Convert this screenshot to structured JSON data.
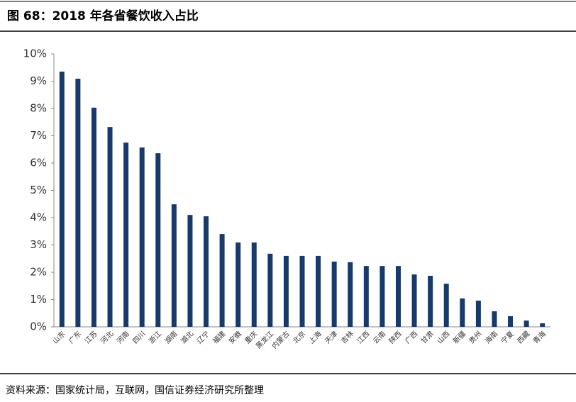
{
  "chart_data": {
    "type": "bar",
    "title": "图 68：2018 年各省餐饮收入占比",
    "source": "资料来源：国家统计局，互联网，国信证券经济研究所整理",
    "categories": [
      "山东",
      "广东",
      "江苏",
      "河北",
      "河南",
      "四川",
      "浙江",
      "湖南",
      "湖北",
      "辽宁",
      "福建",
      "安徽",
      "重庆",
      "黑龙江",
      "内蒙古",
      "北京",
      "上海",
      "天津",
      "吉林",
      "江西",
      "云南",
      "陕西",
      "广西",
      "甘肃",
      "山西",
      "新疆",
      "贵州",
      "海南",
      "宁夏",
      "西藏",
      "青海"
    ],
    "values": [
      9.35,
      9.09,
      8.03,
      7.32,
      6.75,
      6.57,
      6.36,
      4.49,
      4.1,
      4.05,
      3.4,
      3.09,
      3.09,
      2.68,
      2.6,
      2.6,
      2.6,
      2.39,
      2.37,
      2.23,
      2.23,
      2.23,
      1.92,
      1.87,
      1.58,
      1.04,
      0.96,
      0.57,
      0.39,
      0.23,
      0.13
    ],
    "color": "#173a6b",
    "ylim": [
      0,
      10
    ],
    "yticks": [
      {
        "value": 0,
        "label": "0%"
      },
      {
        "value": 1,
        "label": "1%"
      },
      {
        "value": 2,
        "label": "2%"
      },
      {
        "value": 3,
        "label": "3%"
      },
      {
        "value": 4,
        "label": "4%"
      },
      {
        "value": 5,
        "label": "5%"
      },
      {
        "value": 6,
        "label": "6%"
      },
      {
        "value": 7,
        "label": "7%"
      },
      {
        "value": 8,
        "label": "8%"
      },
      {
        "value": 9,
        "label": "9%"
      },
      {
        "value": 10,
        "label": "10%"
      }
    ],
    "grid": false
  }
}
